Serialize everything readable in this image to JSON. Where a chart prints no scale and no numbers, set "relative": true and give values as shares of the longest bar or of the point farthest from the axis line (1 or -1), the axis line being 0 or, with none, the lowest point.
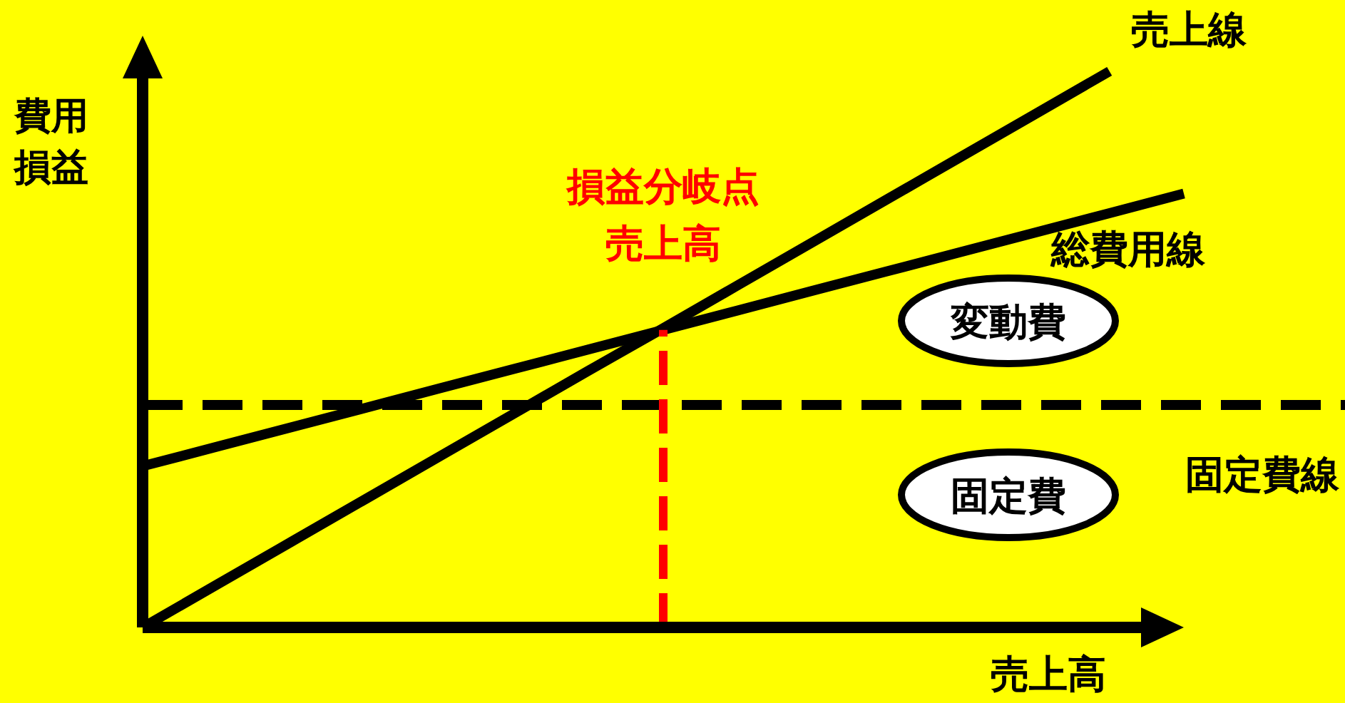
{
  "chart_data": {
    "type": "line",
    "relative": true,
    "xlabel": "売上高",
    "ylabel": "費用損益",
    "legend": false,
    "categories": [
      null,
      null,
      null,
      null,
      null,
      null,
      null,
      null,
      null,
      null,
      null,
      null,
      null,
      null,
      null
    ],
    "series": [
      {
        "name": "売上線",
        "color": "#000000",
        "values": [
          0,
          0.077,
          0.154,
          0.231,
          0.308,
          0.385,
          0.462,
          0.538,
          0.615,
          0.692,
          0.769,
          0.846,
          0.923,
          1,
          null
        ]
      },
      {
        "name": "総費用線",
        "color": "#000000",
        "values": [
          0.29,
          0.325,
          0.36,
          0.395,
          0.43,
          0.465,
          0.5,
          0.535,
          0.57,
          0.605,
          0.64,
          0.675,
          0.71,
          0.745,
          0.78
        ]
      }
    ],
    "ref_lines": [
      {
        "axis": "y",
        "value": 0.4,
        "label": "固定費線",
        "color": "#000000",
        "line_style": "dashed"
      }
    ],
    "annotations": [
      {
        "text": "損益分岐点売上高",
        "y": 0.535
      },
      "変動費",
      "固定費"
    ]
  }
}
